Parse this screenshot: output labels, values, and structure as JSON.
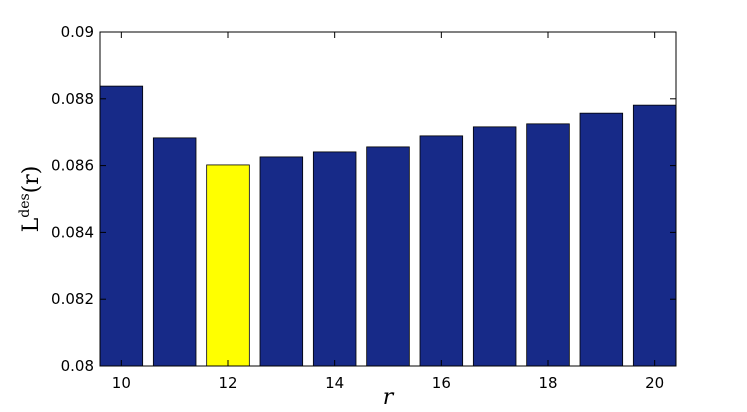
{
  "chart_data": {
    "type": "bar",
    "x": [
      10,
      11,
      12,
      13,
      14,
      15,
      16,
      17,
      18,
      19,
      20
    ],
    "values": [
      0.08838,
      0.08683,
      0.08602,
      0.08626,
      0.08641,
      0.08656,
      0.08689,
      0.08716,
      0.08725,
      0.08757,
      0.08781
    ],
    "colors": [
      "#172a88",
      "#172a88",
      "#ffff00",
      "#172a88",
      "#172a88",
      "#172a88",
      "#172a88",
      "#172a88",
      "#172a88",
      "#172a88",
      "#172a88"
    ],
    "xlim": [
      9.6,
      20.4
    ],
    "xticks": [
      10,
      12,
      14,
      16,
      18,
      20
    ],
    "ylim": [
      0.08,
      0.09
    ],
    "yticks": [
      0.08,
      0.082,
      0.084,
      0.086,
      0.088,
      0.09
    ],
    "xlabel": "r",
    "ylabel": [
      "L",
      "des",
      "(r)"
    ],
    "grid": false
  }
}
